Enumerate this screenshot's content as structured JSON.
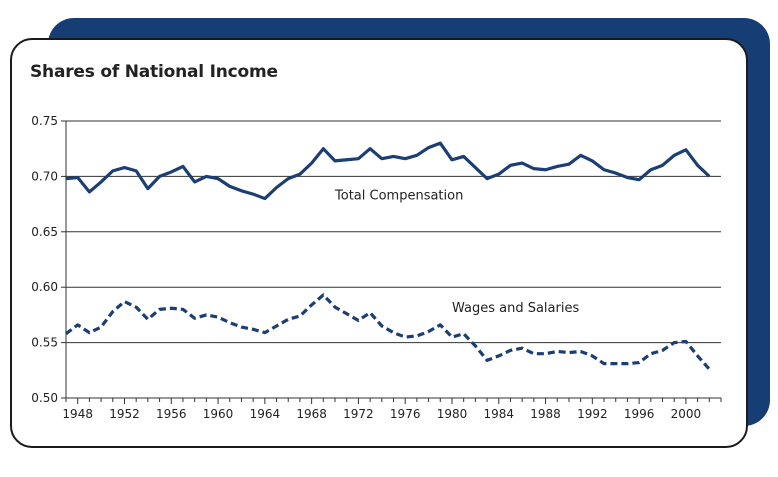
{
  "chart_data": {
    "type": "line",
    "title": "Shares of National Income",
    "xlabel": "",
    "ylabel": "",
    "xlim": [
      1947,
      2003
    ],
    "ylim": [
      0.5,
      0.75
    ],
    "x_ticks": [
      "1948",
      "1952",
      "1956",
      "1960",
      "1964",
      "1968",
      "1972",
      "1976",
      "1980",
      "1984",
      "1988",
      "1992",
      "1996",
      "2000"
    ],
    "y_ticks": [
      "0.50",
      "0.55",
      "0.60",
      "0.65",
      "0.70",
      "0.75"
    ],
    "grid": true,
    "colors": {
      "line": "#1b3f72",
      "grid": "#333333",
      "panel_back": "#163d74"
    },
    "x": [
      1947,
      1948,
      1949,
      1950,
      1951,
      1952,
      1953,
      1954,
      1955,
      1956,
      1957,
      1958,
      1959,
      1960,
      1961,
      1962,
      1963,
      1964,
      1965,
      1966,
      1967,
      1968,
      1969,
      1970,
      1971,
      1972,
      1973,
      1974,
      1975,
      1976,
      1977,
      1978,
      1979,
      1980,
      1981,
      1982,
      1983,
      1984,
      1985,
      1986,
      1987,
      1988,
      1989,
      1990,
      1991,
      1992,
      1993,
      1994,
      1995,
      1996,
      1997,
      1998,
      1999,
      2000,
      2001,
      2002,
      2003
    ],
    "series": [
      {
        "name": "Total Compensation",
        "style": "solid",
        "values": [
          0.698,
          0.699,
          0.686,
          0.695,
          0.705,
          0.708,
          0.705,
          0.689,
          0.7,
          0.704,
          0.709,
          0.695,
          0.7,
          0.698,
          0.691,
          0.687,
          0.684,
          0.68,
          0.69,
          0.698,
          0.702,
          0.712,
          0.725,
          0.714,
          0.715,
          0.716,
          0.725,
          0.716,
          0.718,
          0.716,
          0.719,
          0.726,
          0.73,
          0.715,
          0.718,
          0.708,
          0.698,
          0.702,
          0.71,
          0.712,
          0.707,
          0.706,
          0.709,
          0.711,
          0.719,
          0.714,
          0.706,
          0.703,
          0.699,
          0.697,
          0.706,
          0.71,
          0.719,
          0.724,
          0.71,
          0.7,
          null
        ]
      },
      {
        "name": "Wages and Salaries",
        "style": "dashed",
        "values": [
          0.558,
          0.566,
          0.559,
          0.564,
          0.578,
          0.587,
          0.582,
          0.571,
          0.58,
          0.581,
          0.58,
          0.572,
          0.575,
          0.573,
          0.568,
          0.564,
          0.562,
          0.559,
          0.565,
          0.571,
          0.574,
          0.584,
          0.593,
          0.582,
          0.576,
          0.57,
          0.577,
          0.565,
          0.559,
          0.555,
          0.556,
          0.56,
          0.566,
          0.555,
          0.558,
          0.547,
          0.534,
          0.538,
          0.543,
          0.545,
          0.54,
          0.54,
          0.542,
          0.541,
          0.542,
          0.538,
          0.531,
          0.531,
          0.531,
          0.532,
          0.54,
          0.543,
          0.55,
          0.551,
          0.538,
          0.526,
          null
        ]
      }
    ]
  }
}
